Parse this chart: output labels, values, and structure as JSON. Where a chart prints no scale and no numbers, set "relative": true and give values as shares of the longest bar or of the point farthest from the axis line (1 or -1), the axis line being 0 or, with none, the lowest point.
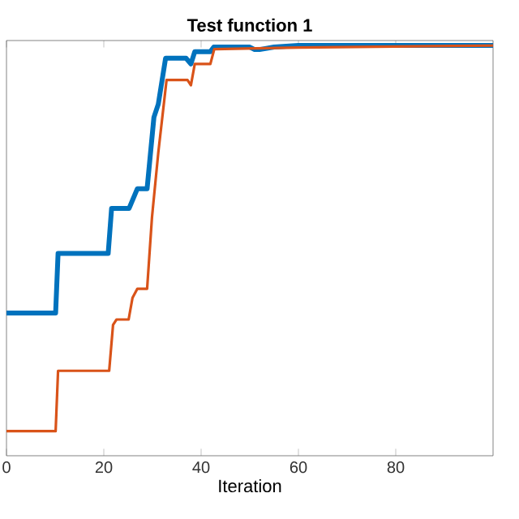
{
  "chart_data": {
    "type": "line",
    "title": "Test function 1",
    "xlabel": "Iteration",
    "relative": true,
    "xlim": [
      0,
      100
    ],
    "xticks": [
      0,
      20,
      40,
      60,
      80
    ],
    "series": [
      {
        "color": "#0072bd",
        "x": [
          0,
          10.1,
          10.6,
          20.9,
          21.6,
          25.2,
          26.9,
          28.9,
          30.3,
          31.2,
          32.7,
          36.9,
          37.9,
          38.7,
          41.9,
          42.6,
          50,
          51,
          52,
          55,
          60,
          100
        ],
        "values": [
          0.348,
          0.348,
          0.493,
          0.493,
          0.603,
          0.603,
          0.651,
          0.651,
          0.825,
          0.857,
          0.969,
          0.969,
          0.955,
          0.985,
          0.985,
          0.996,
          0.996,
          0.99,
          0.99,
          0.996,
          1.0,
          1.0
        ]
      },
      {
        "color": "#d95319",
        "x": [
          0,
          10.1,
          10.6,
          21.1,
          21.9,
          22.6,
          25.1,
          25.9,
          26.9,
          28.9,
          29.9,
          31.2,
          32.9,
          37.2,
          37.9,
          38.7,
          41.9,
          42.7,
          60,
          100
        ],
        "values": [
          0.06,
          0.06,
          0.207,
          0.207,
          0.319,
          0.332,
          0.332,
          0.385,
          0.407,
          0.407,
          0.581,
          0.739,
          0.916,
          0.916,
          0.903,
          0.955,
          0.955,
          0.991,
          0.995,
          1.0
        ]
      }
    ]
  }
}
